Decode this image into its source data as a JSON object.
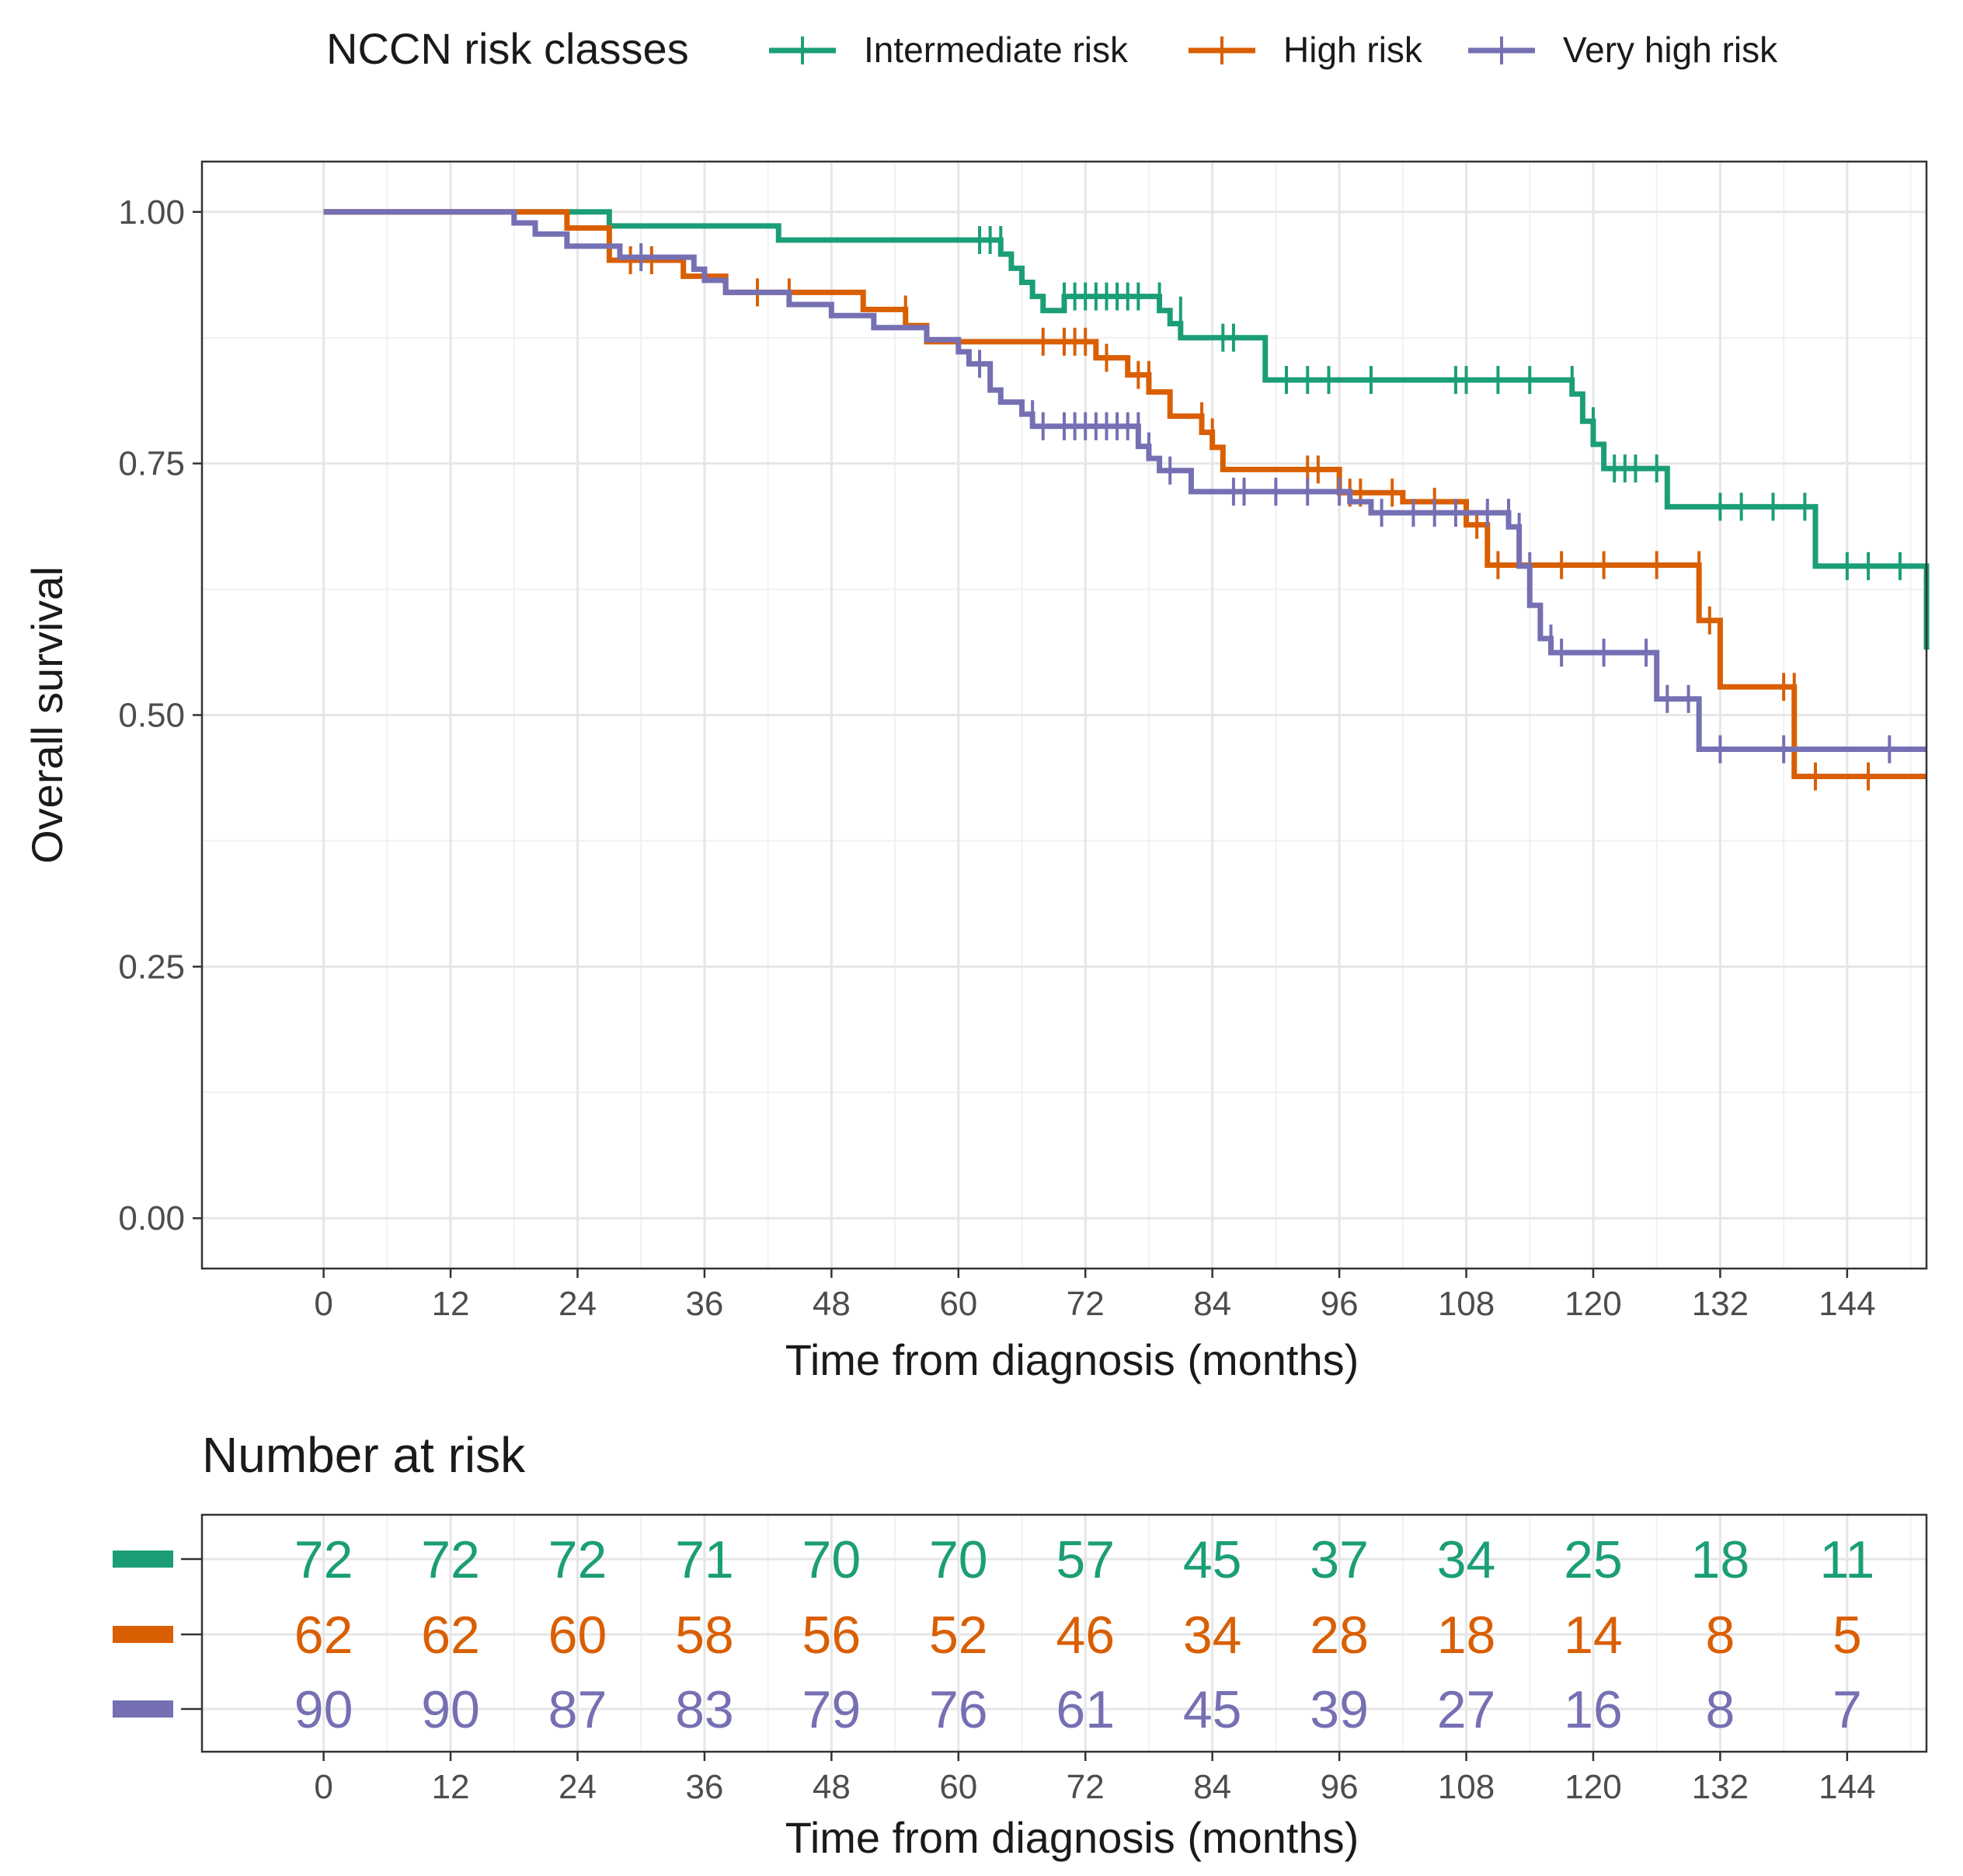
{
  "legend": {
    "title": "NCCN risk classes",
    "items": [
      {
        "label": "Intermediate risk",
        "color": "#1b9e77"
      },
      {
        "label": "High risk",
        "color": "#d95f02"
      },
      {
        "label": "Very high risk",
        "color": "#7570b3"
      }
    ]
  },
  "chart_data": {
    "type": "line",
    "subtype": "kaplan-meier step curves with censor marks",
    "xlabel": "Time from diagnosis (months)",
    "ylabel": "Overall survival",
    "xlim": [
      -11.5,
      151.5
    ],
    "ylim": [
      -0.05,
      1.05
    ],
    "x_ticks": [
      0,
      12,
      24,
      36,
      48,
      60,
      72,
      84,
      96,
      108,
      120,
      132,
      144
    ],
    "y_ticks": [
      0,
      0.25,
      0.5,
      0.75,
      1
    ],
    "y_tick_labels": [
      "0.00",
      "0.25",
      "0.50",
      "0.75",
      "1.00"
    ],
    "grid": true,
    "legend_position": "top",
    "series": [
      {
        "name": "Intermediate risk",
        "color": "#1b9e77",
        "steps": [
          [
            0,
            1.0
          ],
          [
            27,
            0.986
          ],
          [
            43,
            0.972
          ],
          [
            64,
            0.958
          ],
          [
            65,
            0.944
          ],
          [
            66,
            0.93
          ],
          [
            67,
            0.916
          ],
          [
            68,
            0.902
          ],
          [
            69,
            0.902
          ],
          [
            70,
            0.916
          ],
          [
            79,
            0.902
          ],
          [
            80,
            0.889
          ],
          [
            81,
            0.875
          ],
          [
            89,
            0.833
          ],
          [
            118,
            0.819
          ],
          [
            119,
            0.792
          ],
          [
            120,
            0.769
          ],
          [
            121,
            0.745
          ],
          [
            127,
            0.707
          ],
          [
            141,
            0.648
          ],
          [
            151.5,
            0.565
          ]
        ],
        "censored": [
          [
            62,
            0.972
          ],
          [
            63,
            0.972
          ],
          [
            64,
            0.972
          ],
          [
            70,
            0.916
          ],
          [
            71,
            0.916
          ],
          [
            72,
            0.916
          ],
          [
            73,
            0.916
          ],
          [
            74,
            0.916
          ],
          [
            75,
            0.916
          ],
          [
            76,
            0.916
          ],
          [
            77,
            0.916
          ],
          [
            79,
            0.916
          ],
          [
            81,
            0.902
          ],
          [
            85,
            0.875
          ],
          [
            86,
            0.875
          ],
          [
            91,
            0.833
          ],
          [
            93,
            0.833
          ],
          [
            95,
            0.833
          ],
          [
            99,
            0.833
          ],
          [
            107,
            0.833
          ],
          [
            108,
            0.833
          ],
          [
            111,
            0.833
          ],
          [
            114,
            0.833
          ],
          [
            118,
            0.833
          ],
          [
            120,
            0.792
          ],
          [
            122,
            0.745
          ],
          [
            123,
            0.745
          ],
          [
            124,
            0.745
          ],
          [
            126,
            0.745
          ],
          [
            132,
            0.707
          ],
          [
            134,
            0.707
          ],
          [
            137,
            0.707
          ],
          [
            140,
            0.707
          ],
          [
            144,
            0.648
          ],
          [
            146,
            0.648
          ],
          [
            149,
            0.648
          ]
        ]
      },
      {
        "name": "High risk",
        "color": "#d95f02",
        "steps": [
          [
            0,
            1.0
          ],
          [
            18,
            1.0
          ],
          [
            23,
            0.984
          ],
          [
            27,
            0.952
          ],
          [
            34,
            0.936
          ],
          [
            38,
            0.92
          ],
          [
            51,
            0.903
          ],
          [
            55,
            0.887
          ],
          [
            57,
            0.871
          ],
          [
            73,
            0.855
          ],
          [
            76,
            0.838
          ],
          [
            78,
            0.821
          ],
          [
            80,
            0.797
          ],
          [
            83,
            0.781
          ],
          [
            84,
            0.766
          ],
          [
            85,
            0.744
          ],
          [
            96,
            0.721
          ],
          [
            102,
            0.712
          ],
          [
            108,
            0.689
          ],
          [
            110,
            0.649
          ],
          [
            130,
            0.594
          ],
          [
            132,
            0.528
          ],
          [
            139,
            0.439
          ],
          [
            151.5,
            0.439
          ]
        ],
        "censored": [
          [
            29,
            0.952
          ],
          [
            31,
            0.952
          ],
          [
            41,
            0.92
          ],
          [
            44,
            0.92
          ],
          [
            55,
            0.903
          ],
          [
            68,
            0.871
          ],
          [
            70,
            0.871
          ],
          [
            71,
            0.871
          ],
          [
            72,
            0.871
          ],
          [
            74,
            0.855
          ],
          [
            77,
            0.838
          ],
          [
            78,
            0.838
          ],
          [
            83,
            0.797
          ],
          [
            84,
            0.781
          ],
          [
            93,
            0.744
          ],
          [
            94,
            0.744
          ],
          [
            97,
            0.721
          ],
          [
            98,
            0.721
          ],
          [
            101,
            0.721
          ],
          [
            105,
            0.712
          ],
          [
            109,
            0.689
          ],
          [
            111,
            0.649
          ],
          [
            117,
            0.649
          ],
          [
            121,
            0.649
          ],
          [
            126,
            0.649
          ],
          [
            130,
            0.649
          ],
          [
            131,
            0.594
          ],
          [
            138,
            0.528
          ],
          [
            139,
            0.528
          ],
          [
            141,
            0.439
          ],
          [
            146,
            0.439
          ]
        ]
      },
      {
        "name": "Very high risk",
        "color": "#7570b3",
        "steps": [
          [
            0,
            1.0
          ],
          [
            18,
            0.989
          ],
          [
            20,
            0.978
          ],
          [
            23,
            0.966
          ],
          [
            28,
            0.955
          ],
          [
            35,
            0.943
          ],
          [
            36,
            0.932
          ],
          [
            38,
            0.92
          ],
          [
            44,
            0.908
          ],
          [
            48,
            0.897
          ],
          [
            52,
            0.885
          ],
          [
            57,
            0.873
          ],
          [
            60,
            0.861
          ],
          [
            61,
            0.849
          ],
          [
            63,
            0.823
          ],
          [
            64,
            0.811
          ],
          [
            66,
            0.799
          ],
          [
            67,
            0.787
          ],
          [
            68,
            0.787
          ],
          [
            77,
            0.767
          ],
          [
            78,
            0.755
          ],
          [
            79,
            0.743
          ],
          [
            82,
            0.722
          ],
          [
            97,
            0.712
          ],
          [
            99,
            0.701
          ],
          [
            102,
            0.701
          ],
          [
            112,
            0.687
          ],
          [
            113,
            0.648
          ],
          [
            114,
            0.609
          ],
          [
            115,
            0.576
          ],
          [
            116,
            0.562
          ],
          [
            126,
            0.516
          ],
          [
            130,
            0.466
          ],
          [
            151.5,
            0.466
          ]
        ],
        "censored": [
          [
            30,
            0.955
          ],
          [
            62,
            0.849
          ],
          [
            67,
            0.799
          ],
          [
            68,
            0.787
          ],
          [
            70,
            0.787
          ],
          [
            71,
            0.787
          ],
          [
            72,
            0.787
          ],
          [
            73,
            0.787
          ],
          [
            74,
            0.787
          ],
          [
            75,
            0.787
          ],
          [
            76,
            0.787
          ],
          [
            77,
            0.787
          ],
          [
            78,
            0.767
          ],
          [
            80,
            0.743
          ],
          [
            86,
            0.722
          ],
          [
            87,
            0.722
          ],
          [
            90,
            0.722
          ],
          [
            93,
            0.722
          ],
          [
            96,
            0.722
          ],
          [
            100,
            0.701
          ],
          [
            103,
            0.701
          ],
          [
            105,
            0.701
          ],
          [
            107,
            0.701
          ],
          [
            110,
            0.701
          ],
          [
            112,
            0.701
          ],
          [
            113,
            0.687
          ],
          [
            114,
            0.648
          ],
          [
            116,
            0.576
          ],
          [
            117,
            0.562
          ],
          [
            121,
            0.562
          ],
          [
            125,
            0.562
          ],
          [
            127,
            0.516
          ],
          [
            129,
            0.516
          ],
          [
            132,
            0.466
          ],
          [
            138,
            0.466
          ],
          [
            148,
            0.466
          ]
        ]
      }
    ]
  },
  "risk_table": {
    "title": "Number at risk",
    "xlabel": "Time from diagnosis (months)",
    "times": [
      0,
      12,
      24,
      36,
      48,
      60,
      72,
      84,
      96,
      108,
      120,
      132,
      144
    ],
    "rows": [
      {
        "name": "Intermediate risk",
        "color": "#1b9e77",
        "values": [
          72,
          72,
          72,
          71,
          70,
          70,
          57,
          45,
          37,
          34,
          25,
          18,
          11
        ]
      },
      {
        "name": "High risk",
        "color": "#d95f02",
        "values": [
          62,
          62,
          60,
          58,
          56,
          52,
          46,
          34,
          28,
          18,
          14,
          8,
          5
        ]
      },
      {
        "name": "Very high risk",
        "color": "#7570b3",
        "values": [
          90,
          90,
          87,
          83,
          79,
          76,
          61,
          45,
          39,
          27,
          16,
          8,
          7
        ]
      }
    ]
  }
}
